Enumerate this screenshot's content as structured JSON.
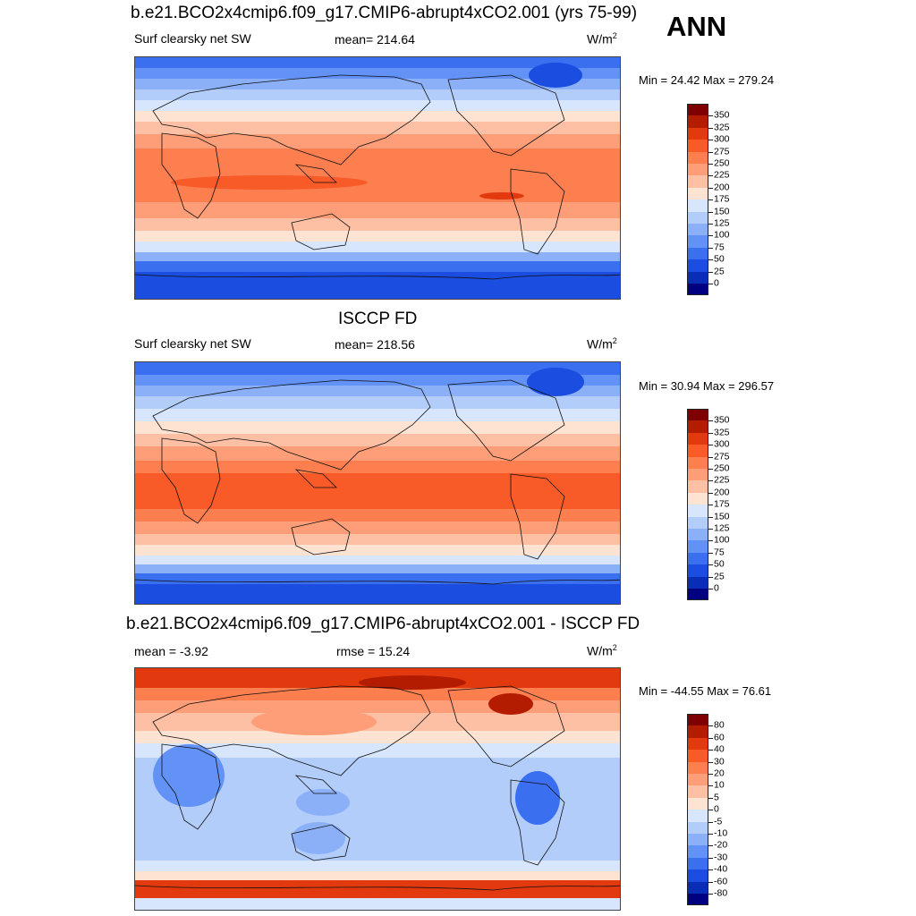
{
  "season": "ANN",
  "unit_base": "W/m",
  "unit_exp": "2",
  "panels": [
    {
      "title": "b.e21.BCO2x4cmip6.f09_g17.CMIP6-abrupt4xCO2.001 (yrs 75-99)",
      "left_label": "Surf clearsky net SW",
      "center_label": "mean= 214.64",
      "minmax": "Min =  24.42 Max = 279.24"
    },
    {
      "title": "ISCCP FD",
      "left_label": "Surf clearsky net SW",
      "center_label": "mean= 218.56",
      "minmax": "Min =  30.94 Max = 296.57"
    },
    {
      "title": "b.e21.BCO2x4cmip6.f09_g17.CMIP6-abrupt4xCO2.001 - ISCCP FD",
      "left_label": "mean =  -3.92",
      "center_label": "rmse =  15.24",
      "minmax": "Min = -44.55 Max =  76.61"
    }
  ],
  "colorbars": {
    "field": {
      "labels": [
        "350",
        "325",
        "300",
        "275",
        "250",
        "225",
        "200",
        "175",
        "150",
        "125",
        "100",
        "75",
        "50",
        "25",
        "0"
      ],
      "colors": [
        "#7f0000",
        "#b41c00",
        "#e23a0e",
        "#f85a28",
        "#fd7f4f",
        "#fe9e78",
        "#fec0a4",
        "#fee3d2",
        "#d8e6fd",
        "#b3cdfb",
        "#8cb0f8",
        "#6292f5",
        "#3a6ff0",
        "#1a4de0",
        "#0a2db8",
        "#000080"
      ]
    },
    "diff": {
      "labels": [
        "80",
        "60",
        "40",
        "30",
        "20",
        "10",
        "5",
        "0",
        "-5",
        "-10",
        "-20",
        "-30",
        "-40",
        "-60",
        "-80"
      ],
      "colors": [
        "#7f0000",
        "#b41c00",
        "#e23a0e",
        "#f85a28",
        "#fd7f4f",
        "#fe9e78",
        "#fec0a4",
        "#fee3d2",
        "#d8e6fd",
        "#b3cdfb",
        "#8cb0f8",
        "#6292f5",
        "#3a6ff0",
        "#1a4de0",
        "#0a2db8",
        "#000080"
      ]
    }
  }
}
